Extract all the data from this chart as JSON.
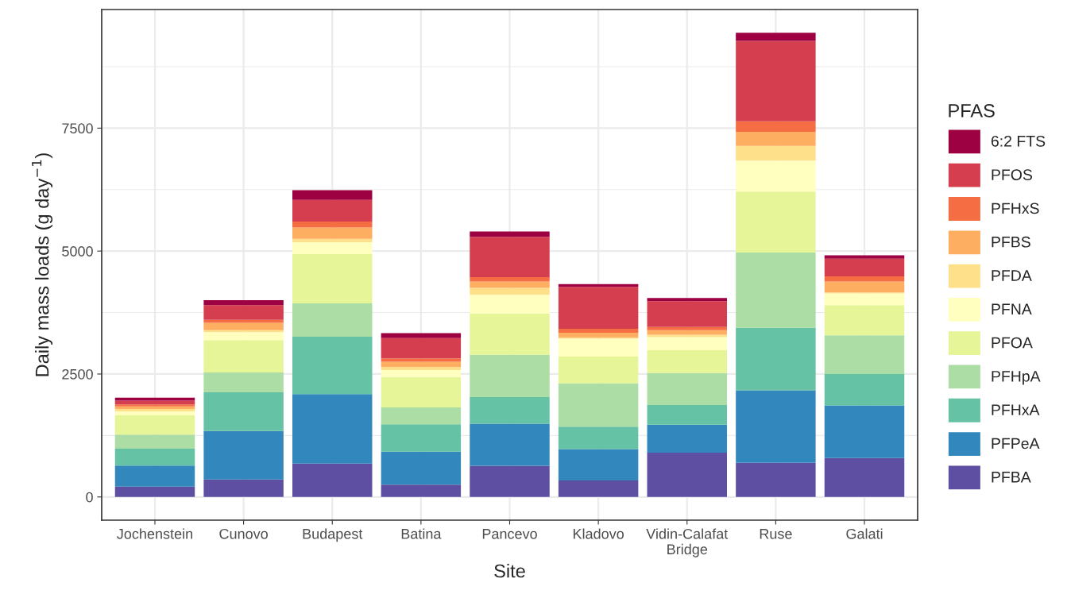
{
  "chart_data": {
    "type": "bar",
    "stacked": true,
    "xlabel": "Site",
    "ylabel": "Daily mass loads (g day$^{−1}$)",
    "legend_title": "PFAS",
    "categories": [
      "Jochenstein",
      "Cunovo",
      "Budapest",
      "Batina",
      "Pancevo",
      "Kladovo",
      "Vidin-Calafat\nBridge",
      "Ruse",
      "Galati"
    ],
    "ylim": [
      -472,
      9912
    ],
    "yticks": [
      0,
      2500,
      5000,
      7500
    ],
    "grid": true,
    "legend": "right",
    "series": [
      {
        "name": "PFBA",
        "color": "#5e4fa2",
        "values": [
          210,
          355,
          680,
          250,
          635,
          335,
          900,
          695,
          790
        ]
      },
      {
        "name": "PFPeA",
        "color": "#3288bd",
        "values": [
          430,
          985,
          1410,
          670,
          855,
          640,
          570,
          1475,
          1070
        ]
      },
      {
        "name": "PFHxA",
        "color": "#66c2a5",
        "values": [
          340,
          790,
          1170,
          560,
          540,
          455,
          400,
          1270,
          640
        ]
      },
      {
        "name": "PFHpA",
        "color": "#abdda4",
        "values": [
          290,
          400,
          675,
          340,
          860,
          880,
          650,
          1530,
          785
        ]
      },
      {
        "name": "PFOA",
        "color": "#e6f598",
        "values": [
          390,
          660,
          1005,
          620,
          840,
          545,
          465,
          1240,
          615
        ]
      },
      {
        "name": "PFNA",
        "color": "#ffffbf",
        "values": [
          80,
          160,
          240,
          140,
          380,
          365,
          265,
          630,
          240
        ]
      },
      {
        "name": "PFDA",
        "color": "#fee08b",
        "values": [
          50,
          40,
          70,
          60,
          140,
          20,
          50,
          300,
          20
        ]
      },
      {
        "name": "PFBS",
        "color": "#fdae61",
        "values": [
          50,
          150,
          230,
          110,
          130,
          100,
          90,
          285,
          220
        ]
      },
      {
        "name": "PFHxS",
        "color": "#f46d43",
        "values": [
          40,
          60,
          120,
          70,
          90,
          80,
          65,
          215,
          105
        ]
      },
      {
        "name": "PFOS",
        "color": "#d53e4f",
        "values": [
          80,
          300,
          440,
          410,
          820,
          850,
          525,
          1635,
          360
        ]
      },
      {
        "name": "6:2 FTS",
        "color": "#9e0142",
        "values": [
          60,
          100,
          200,
          100,
          110,
          60,
          65,
          165,
          70
        ]
      }
    ]
  }
}
